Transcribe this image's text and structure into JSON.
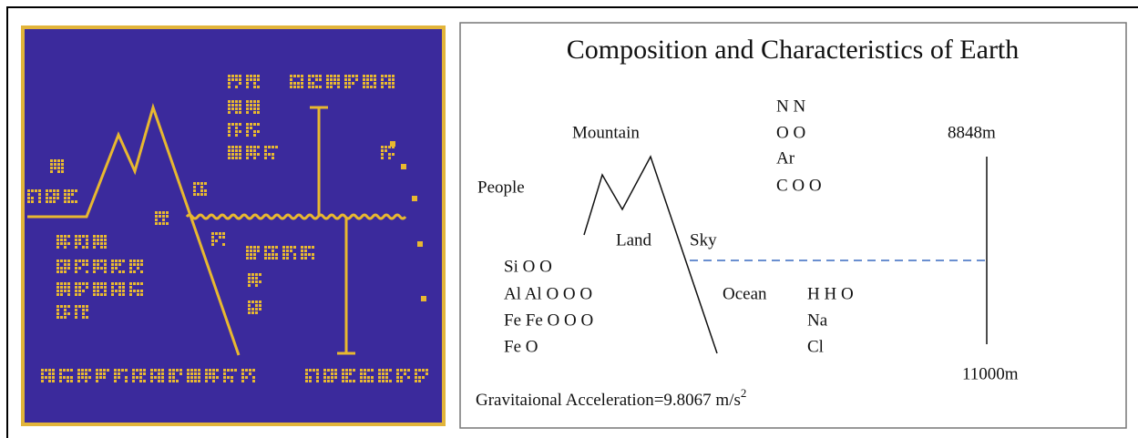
{
  "title": "Composition and Characteristics of Earth",
  "atmosphere": [
    "N N",
    "O O",
    "Ar",
    "C O O"
  ],
  "labels": {
    "mountain": "Mountain",
    "people": "People",
    "land": "Land",
    "sky": "Sky",
    "ocean": "Ocean",
    "height": "8848m",
    "depth": "11000m"
  },
  "crust": [
    "Si O O",
    "Al Al O O O",
    "Fe Fe O O O",
    "Fe O"
  ],
  "sea": [
    "H H O",
    "Na",
    "Cl"
  ],
  "gravity": {
    "text": "Gravitaional Acceleration=9.8067 m/s",
    "superscript": "2"
  }
}
